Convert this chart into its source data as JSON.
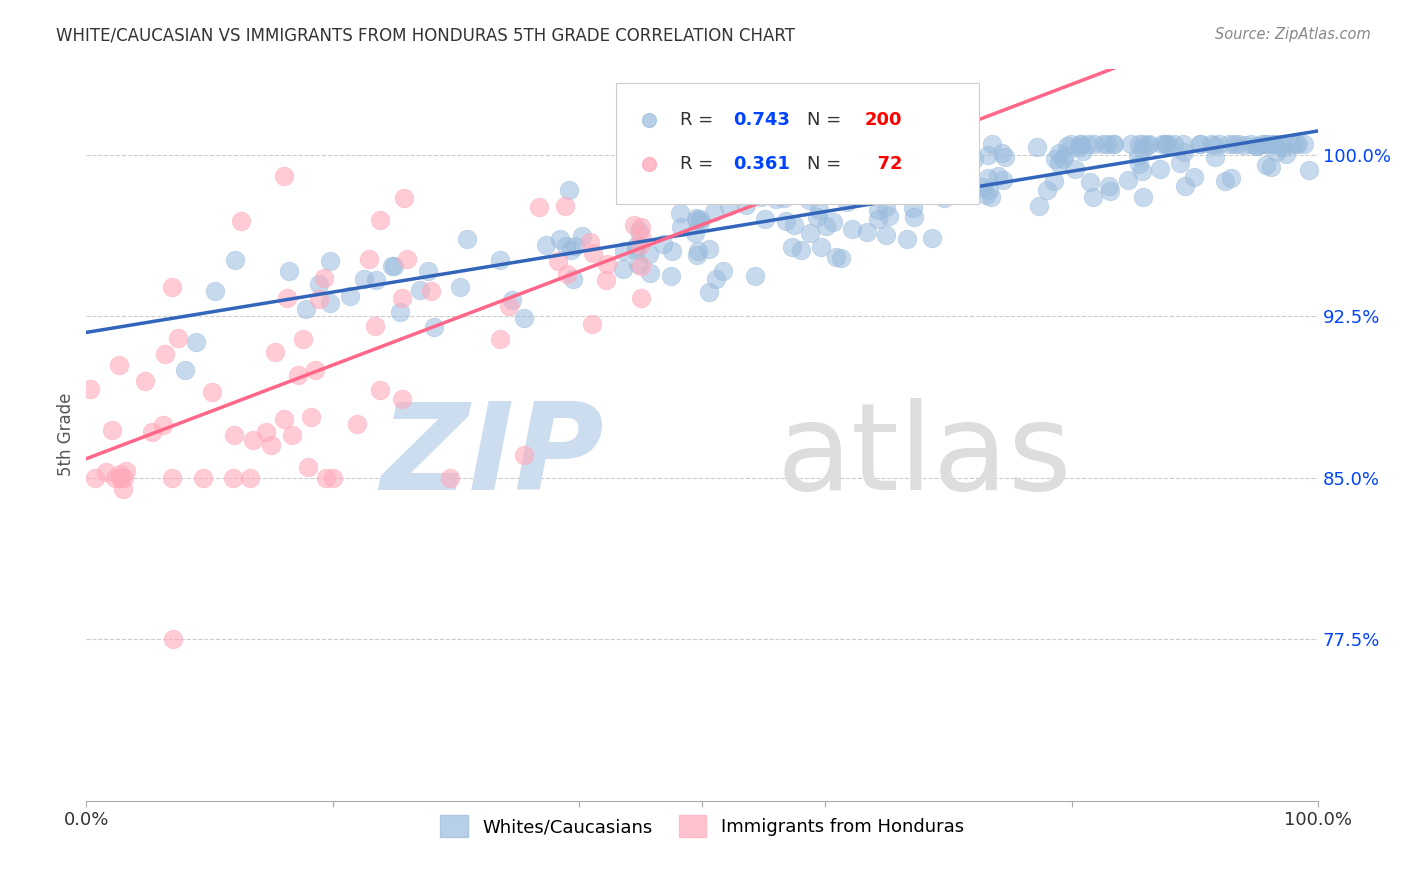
{
  "title": "WHITE/CAUCASIAN VS IMMIGRANTS FROM HONDURAS 5TH GRADE CORRELATION CHART",
  "source": "Source: ZipAtlas.com",
  "ylabel": "5th Grade",
  "ytick_labels": [
    "77.5%",
    "85.0%",
    "92.5%",
    "100.0%"
  ],
  "ytick_values": [
    0.775,
    0.85,
    0.925,
    1.0
  ],
  "xlim": [
    0.0,
    1.0
  ],
  "ylim": [
    0.7,
    1.04
  ],
  "blue_R": 0.743,
  "blue_N": 200,
  "pink_R": 0.361,
  "pink_N": 72,
  "blue_color": "#99BBDD",
  "pink_color": "#FFAABB",
  "blue_line_color": "#3366BB",
  "pink_line_color": "#FF6688",
  "blue_label": "Whites/Caucasians",
  "pink_label": "Immigrants from Honduras",
  "watermark_zip": "ZIP",
  "watermark_atlas": "atlas",
  "watermark_color": "#DDEEFF",
  "watermark_atlas_color": "#CCCCCC",
  "legend_R_color": "#0044FF",
  "legend_N_color": "#FF0000",
  "background_color": "#FFFFFF",
  "title_color": "#333333",
  "grid_color": "#CCCCCC",
  "seed": 7
}
